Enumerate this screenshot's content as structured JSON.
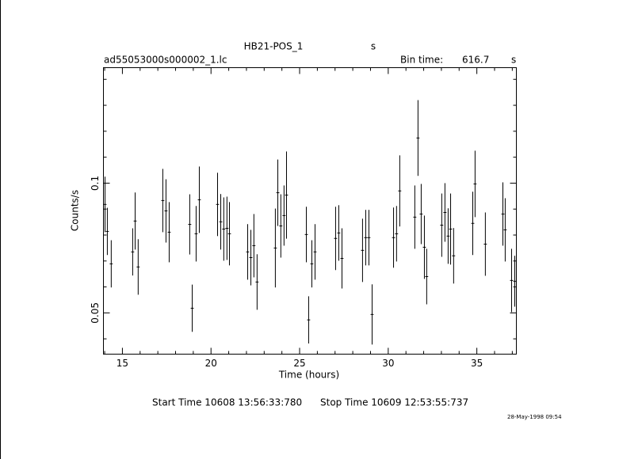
{
  "chart_data": {
    "type": "errorbar",
    "title": "HB21-POS_1",
    "title_unit": "s",
    "filename": "ad55053000s000002_1.lc",
    "bin_time_label": "Bin time:",
    "bin_time": 616.7,
    "bin_time_unit": "s",
    "xlabel": "Time (hours)",
    "ylabel": "Counts/s",
    "start_time": "Start Time 10608 13:56:33:780",
    "stop_time": "Stop Time 10609 12:53:55:737",
    "timestamp": "28-May-1998 09:54",
    "xlim": [
      13.93,
      37.23
    ],
    "xticks": [
      15,
      20,
      25,
      30,
      35
    ],
    "xminorticks": [
      14,
      16,
      17,
      18,
      19,
      21,
      22,
      23,
      24,
      26,
      27,
      28,
      29,
      31,
      32,
      33,
      34,
      36,
      37
    ],
    "ylim": [
      0.0341,
      0.1445
    ],
    "yticks": [
      0.05,
      0.1
    ],
    "yminorticks": [
      0.04,
      0.06,
      0.07,
      0.08,
      0.09,
      0.11,
      0.12,
      0.13,
      0.14
    ],
    "color": "#000000",
    "x": [
      14.02,
      14.15,
      14.37,
      15.58,
      15.72,
      15.89,
      17.28,
      17.46,
      17.64,
      18.8,
      18.94,
      19.16,
      19.34,
      20.37,
      20.55,
      20.72,
      20.9,
      21.04,
      22.07,
      22.25,
      22.42,
      22.6,
      23.63,
      23.77,
      23.94,
      24.12,
      24.26,
      25.38,
      25.51,
      25.69,
      25.87,
      27.03,
      27.21,
      27.39,
      28.55,
      28.73,
      28.91,
      29.09,
      30.3,
      30.47,
      30.65,
      31.5,
      31.68,
      31.86,
      32.04,
      32.17,
      33.02,
      33.2,
      33.38,
      33.52,
      33.69,
      34.77,
      34.9,
      35.48,
      36.47,
      36.6,
      36.96,
      37.14
    ],
    "values": [
      0.0918,
      0.0814,
      0.0689,
      0.0735,
      0.0854,
      0.0677,
      0.0933,
      0.0893,
      0.0811,
      0.0841,
      0.0518,
      0.0805,
      0.0936,
      0.0918,
      0.0851,
      0.0823,
      0.0826,
      0.0805,
      0.0735,
      0.0713,
      0.0759,
      0.0619,
      0.075,
      0.0963,
      0.0835,
      0.0875,
      0.0954,
      0.0802,
      0.0473,
      0.0689,
      0.0735,
      0.0787,
      0.0808,
      0.071,
      0.0741,
      0.079,
      0.079,
      0.0494,
      0.079,
      0.0805,
      0.097,
      0.0869,
      0.1174,
      0.0881,
      0.0753,
      0.064,
      0.0838,
      0.0887,
      0.0796,
      0.0823,
      0.072,
      0.0845,
      0.0997,
      0.0765,
      0.0881,
      0.082,
      0.0625,
      0.0622
    ],
    "errors": [
      0.0107,
      0.0091,
      0.0091,
      0.0091,
      0.011,
      0.0107,
      0.0122,
      0.0122,
      0.0116,
      0.0116,
      0.0091,
      0.0107,
      0.0128,
      0.0122,
      0.0107,
      0.0122,
      0.0122,
      0.0122,
      0.0107,
      0.0107,
      0.0122,
      0.0107,
      0.0152,
      0.0128,
      0.0122,
      0.0116,
      0.0168,
      0.0107,
      0.0091,
      0.0091,
      0.0107,
      0.0122,
      0.0107,
      0.0116,
      0.0122,
      0.0107,
      0.0107,
      0.0116,
      0.0116,
      0.0107,
      0.0137,
      0.0122,
      0.0146,
      0.0116,
      0.0122,
      0.0107,
      0.0122,
      0.0113,
      0.0107,
      0.0137,
      0.0107,
      0.0122,
      0.0128,
      0.0122,
      0.0122,
      0.0122,
      0.0122,
      0.0098
    ]
  }
}
